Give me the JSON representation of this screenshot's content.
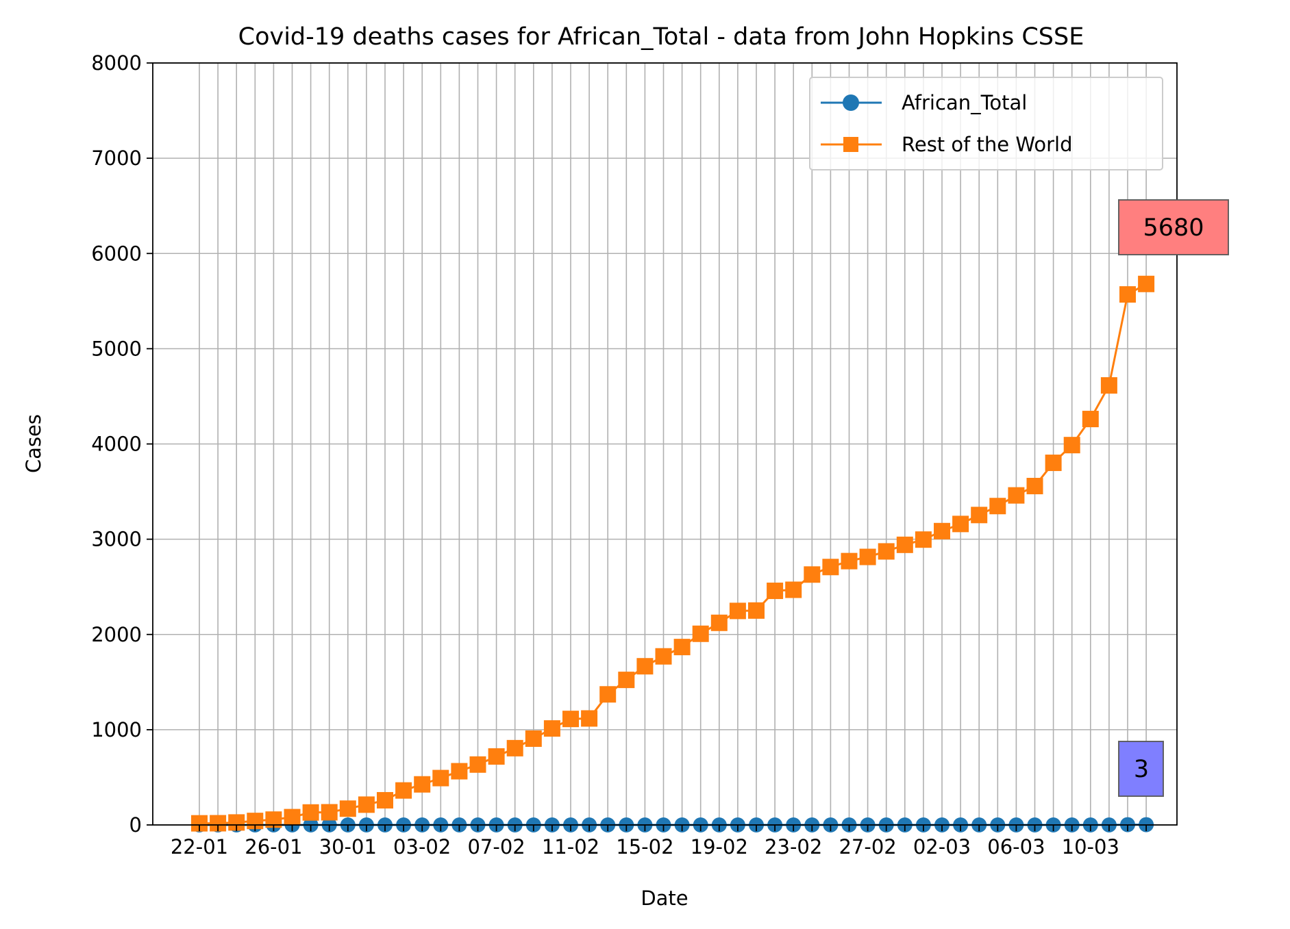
{
  "chart_data": {
    "type": "line",
    "title": "Covid-19 deaths cases for African_Total - data from John Hopkins CSSE",
    "xlabel": "Date",
    "ylabel": "Cases",
    "ylim": [
      0,
      8000
    ],
    "yticks": [
      0,
      1000,
      2000,
      3000,
      4000,
      5000,
      6000,
      7000,
      8000
    ],
    "xtick_labels": [
      "22-01",
      "26-01",
      "30-01",
      "03-02",
      "07-02",
      "11-02",
      "15-02",
      "19-02",
      "23-02",
      "27-02",
      "02-03",
      "06-03",
      "10-03"
    ],
    "grid": true,
    "legend_position": "upper right",
    "categories": [
      "22-01",
      "23-01",
      "24-01",
      "25-01",
      "26-01",
      "27-01",
      "28-01",
      "29-01",
      "30-01",
      "31-01",
      "01-02",
      "02-02",
      "03-02",
      "04-02",
      "05-02",
      "06-02",
      "07-02",
      "08-02",
      "09-02",
      "10-02",
      "11-02",
      "12-02",
      "13-02",
      "14-02",
      "15-02",
      "16-02",
      "17-02",
      "18-02",
      "19-02",
      "20-02",
      "21-02",
      "22-02",
      "23-02",
      "24-02",
      "25-02",
      "26-02",
      "27-02",
      "28-02",
      "29-02",
      "01-03",
      "02-03",
      "03-03",
      "04-03",
      "05-03",
      "06-03",
      "07-03",
      "08-03",
      "09-03",
      "10-03",
      "11-03",
      "12-03",
      "13-03"
    ],
    "series": [
      {
        "name": "African_Total",
        "color": "#1f77b4",
        "marker": "circle",
        "values": [
          0,
          0,
          0,
          0,
          0,
          0,
          0,
          0,
          0,
          0,
          0,
          0,
          0,
          0,
          0,
          0,
          0,
          0,
          0,
          0,
          0,
          0,
          0,
          0,
          0,
          0,
          0,
          0,
          0,
          0,
          0,
          0,
          0,
          0,
          0,
          0,
          0,
          0,
          0,
          0,
          0,
          0,
          0,
          0,
          0,
          0,
          0,
          0,
          0,
          0,
          3,
          3
        ]
      },
      {
        "name": "Rest of the World",
        "color": "#ff7f0e",
        "marker": "square",
        "values": [
          17,
          18,
          26,
          42,
          56,
          82,
          131,
          133,
          171,
          213,
          259,
          362,
          426,
          492,
          564,
          634,
          719,
          806,
          906,
          1013,
          1113,
          1118,
          1371,
          1523,
          1666,
          1770,
          1868,
          2007,
          2122,
          2247,
          2251,
          2458,
          2469,
          2629,
          2708,
          2770,
          2814,
          2872,
          2941,
          2996,
          3085,
          3160,
          3254,
          3348,
          3460,
          3558,
          3802,
          3988,
          4262,
          4615,
          5570,
          5680
        ]
      }
    ],
    "annotations": [
      {
        "text": "5680",
        "series": "Rest of the World",
        "box_color": "#ff7f7f"
      },
      {
        "text": "3",
        "series": "African_Total",
        "box_color": "#7f7fff"
      }
    ]
  }
}
